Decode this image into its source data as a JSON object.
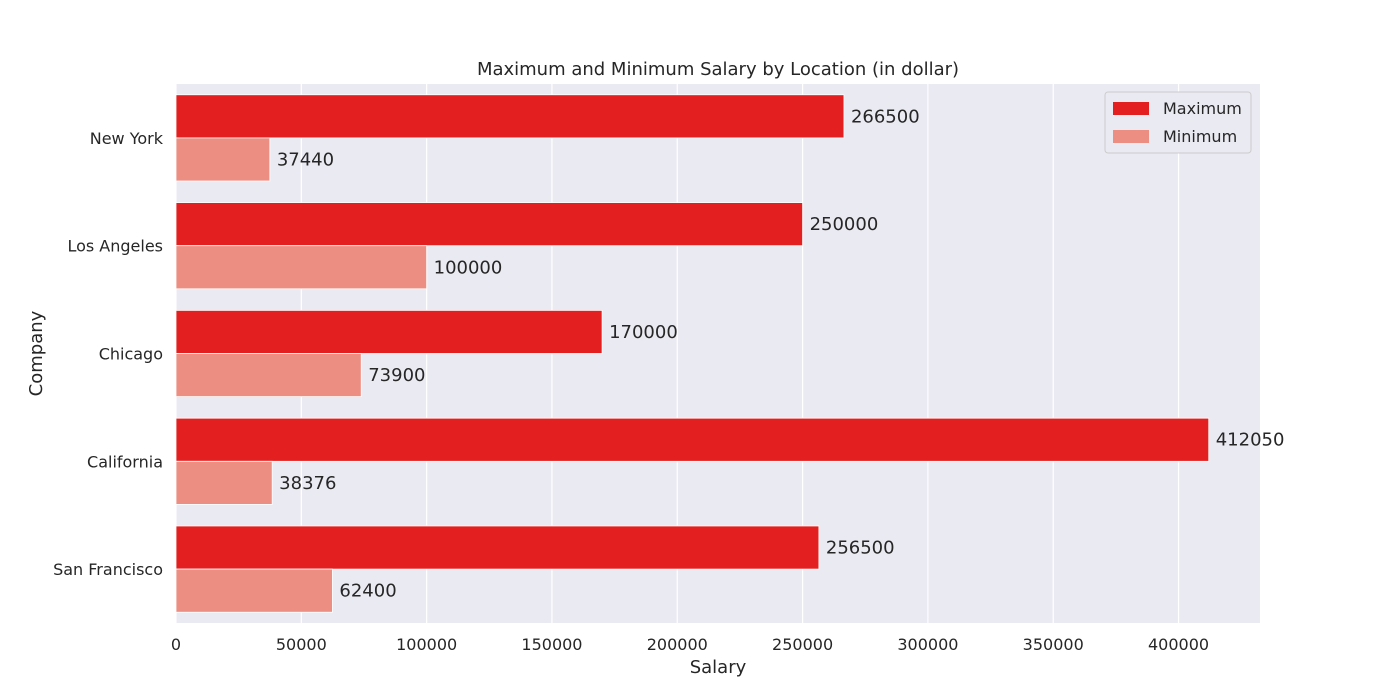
{
  "chart_data": {
    "type": "bar",
    "orientation": "horizontal",
    "title": "Maximum and Minimum Salary by Location (in dollar)",
    "xlabel": "Salary",
    "ylabel": "Company",
    "categories": [
      "New York",
      "Los Angeles",
      "Chicago",
      "California",
      "San Francisco"
    ],
    "series": [
      {
        "name": "Maximum",
        "values": [
          266500,
          250000,
          170000,
          412050,
          256500
        ],
        "color": "#e31f1f"
      },
      {
        "name": "Minimum",
        "values": [
          37440,
          100000,
          73900,
          38376,
          62400
        ],
        "color": "#ec8e82"
      }
    ],
    "xlim": [
      0,
      432500
    ],
    "xticks": [
      0,
      50000,
      100000,
      150000,
      200000,
      250000,
      300000,
      350000,
      400000
    ],
    "grid": true,
    "legend_position": "top-right",
    "background_color": "#eaeaf2",
    "grid_color": "#ffffff"
  }
}
